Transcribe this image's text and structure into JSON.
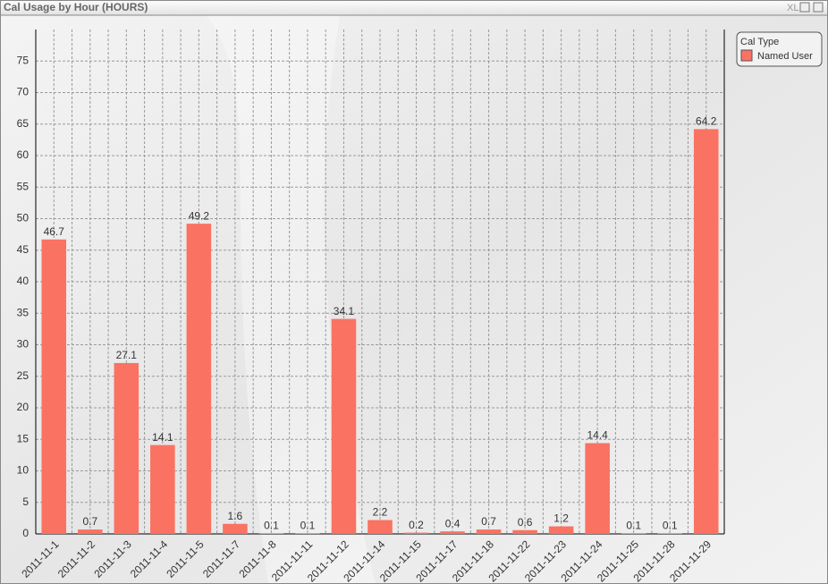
{
  "chart_data": {
    "type": "bar",
    "title": "Cal Usage by Hour (HOURS)",
    "toolbar_text": "XL",
    "legend_title": "Cal Type",
    "legend": "top-right",
    "grid": true,
    "categories": [
      "2011-11-1",
      "2011-11-2",
      "2011-11-3",
      "2011-11-4",
      "2011-11-5",
      "2011-11-7",
      "2011-11-8",
      "2011-11-11",
      "2011-11-12",
      "2011-11-14",
      "2011-11-15",
      "2011-11-17",
      "2011-11-18",
      "2011-11-22",
      "2011-11-23",
      "2011-11-24",
      "2011-11-25",
      "2011-11-28",
      "2011-11-29"
    ],
    "series": [
      {
        "name": "Named User",
        "color": "#fa7262",
        "values": [
          46.7,
          0.7,
          27.1,
          14.1,
          49.2,
          1.6,
          0.1,
          0.1,
          34.1,
          2.2,
          0.2,
          0.4,
          0.7,
          0.6,
          1.2,
          14.4,
          0.1,
          0.1,
          64.2
        ]
      }
    ],
    "ylim": [
      0,
      80
    ],
    "yticks": [
      0,
      5,
      10,
      15,
      20,
      25,
      30,
      35,
      40,
      45,
      50,
      55,
      60,
      65,
      70,
      75
    ]
  }
}
